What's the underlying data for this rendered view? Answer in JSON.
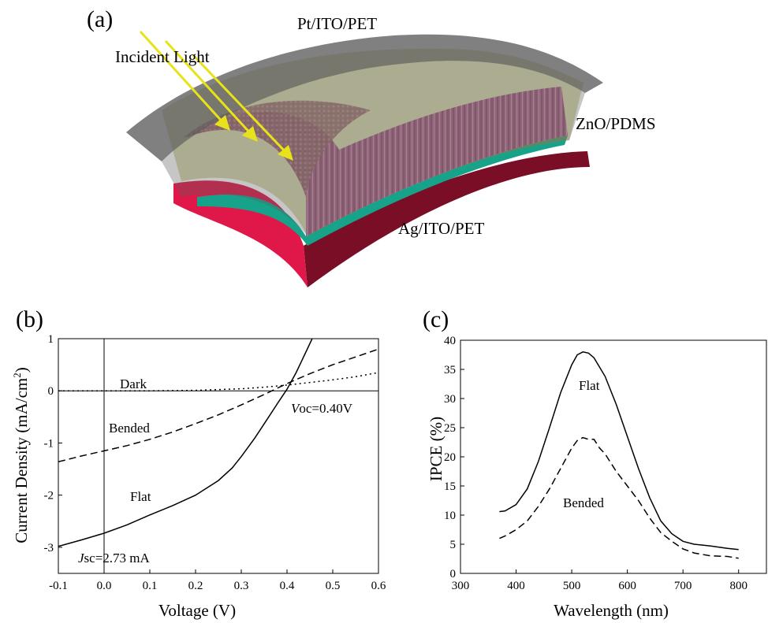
{
  "panels": {
    "a": "(a)",
    "b": "(b)",
    "c": "(c)"
  },
  "device": {
    "top_electrode": "Pt/ITO/PET",
    "incident_light": "Incident Light",
    "active_layer": "ZnO/PDMS",
    "bottom_electrode": "Ag/ITO/PET",
    "colors": {
      "top_sheet": "#5c5c5c",
      "film": "#a6a648",
      "nanorods": "#b72ec8",
      "seed_layer": "#16a38a",
      "substrate": "#e0184a",
      "substrate_edge": "#7a0e26",
      "light_arrows": "#e8e21a"
    }
  },
  "chart_data": [
    {
      "type": "line",
      "panel": "(b)",
      "xlabel": "Voltage (V)",
      "ylabel": "Current Density (mA/cm²)",
      "ylabel_parts": {
        "main": "Current Density (mA/cm",
        "sup": "2",
        "close": ")"
      },
      "xlim": [
        -0.1,
        0.6
      ],
      "ylim": [
        -3.5,
        1
      ],
      "xticks": [
        "-0.1",
        "0.0",
        "0.1",
        "0.2",
        "0.3",
        "0.4",
        "0.5",
        "0.6"
      ],
      "yticks": [
        "1",
        "0",
        "-1",
        "-2",
        "-3"
      ],
      "series": [
        {
          "name": "Dark",
          "style": "dotted",
          "x": [
            -0.1,
            0.0,
            0.1,
            0.2,
            0.3,
            0.35,
            0.4,
            0.45,
            0.5,
            0.55,
            0.6
          ],
          "y": [
            0.0,
            0.0,
            0.0,
            0.01,
            0.04,
            0.07,
            0.11,
            0.16,
            0.21,
            0.27,
            0.35
          ]
        },
        {
          "name": "Bended",
          "style": "dashed",
          "x": [
            -0.1,
            -0.05,
            0.0,
            0.05,
            0.1,
            0.15,
            0.2,
            0.25,
            0.3,
            0.35,
            0.4,
            0.45,
            0.5,
            0.55,
            0.6
          ],
          "y": [
            -1.36,
            -1.25,
            -1.15,
            -1.05,
            -0.93,
            -0.79,
            -0.63,
            -0.46,
            -0.27,
            -0.07,
            0.14,
            0.33,
            0.5,
            0.65,
            0.8
          ]
        },
        {
          "name": "Flat",
          "style": "solid",
          "x": [
            -0.1,
            -0.05,
            0.0,
            0.05,
            0.1,
            0.15,
            0.2,
            0.25,
            0.28,
            0.3,
            0.33,
            0.36,
            0.38,
            0.4,
            0.42,
            0.44,
            0.455
          ],
          "y": [
            -2.98,
            -2.86,
            -2.73,
            -2.57,
            -2.38,
            -2.2,
            -2.0,
            -1.72,
            -1.48,
            -1.26,
            -0.9,
            -0.5,
            -0.23,
            0.03,
            0.35,
            0.72,
            1.0
          ]
        }
      ],
      "annotations": {
        "dark": "Dark",
        "bended": "Bended",
        "flat": "Flat",
        "voc_italic": "V",
        "voc_rest": "oc=0.40V",
        "jsc_italic": "J",
        "jsc_rest": "sc=2.73 mA"
      }
    },
    {
      "type": "line",
      "panel": "(c)",
      "xlabel": "Wavelength (nm)",
      "ylabel": "IPCE (%)",
      "xlim": [
        300,
        850
      ],
      "ylim": [
        0,
        40
      ],
      "xticks": [
        "300",
        "400",
        "500",
        "600",
        "700",
        "800"
      ],
      "yticks": [
        "0",
        "5",
        "10",
        "15",
        "20",
        "25",
        "30",
        "35",
        "40"
      ],
      "series": [
        {
          "name": "Flat",
          "style": "solid",
          "x": [
            370,
            380,
            400,
            420,
            440,
            460,
            480,
            500,
            510,
            520,
            530,
            540,
            560,
            580,
            600,
            620,
            640,
            660,
            680,
            700,
            720,
            750,
            780,
            800
          ],
          "y": [
            10.6,
            10.7,
            11.8,
            14.5,
            19.2,
            25.0,
            31.0,
            35.8,
            37.5,
            38.0,
            37.8,
            37.0,
            33.8,
            29.0,
            23.5,
            18.0,
            13.0,
            9.0,
            6.8,
            5.5,
            5.0,
            4.7,
            4.3,
            4.1
          ]
        },
        {
          "name": "Bended",
          "style": "dashed",
          "x": [
            370,
            380,
            400,
            420,
            440,
            460,
            480,
            500,
            510,
            520,
            530,
            540,
            550,
            560,
            580,
            600,
            620,
            640,
            660,
            680,
            700,
            720,
            750,
            780,
            800
          ],
          "y": [
            6.0,
            6.4,
            7.5,
            9.0,
            11.5,
            14.5,
            18.0,
            21.5,
            22.8,
            23.3,
            23.0,
            23.0,
            21.5,
            20.5,
            17.5,
            15.0,
            12.5,
            9.5,
            7.0,
            5.5,
            4.2,
            3.5,
            3.0,
            2.9,
            2.6
          ]
        }
      ],
      "annotations": {
        "flat": "Flat",
        "bended": "Bended"
      }
    }
  ]
}
